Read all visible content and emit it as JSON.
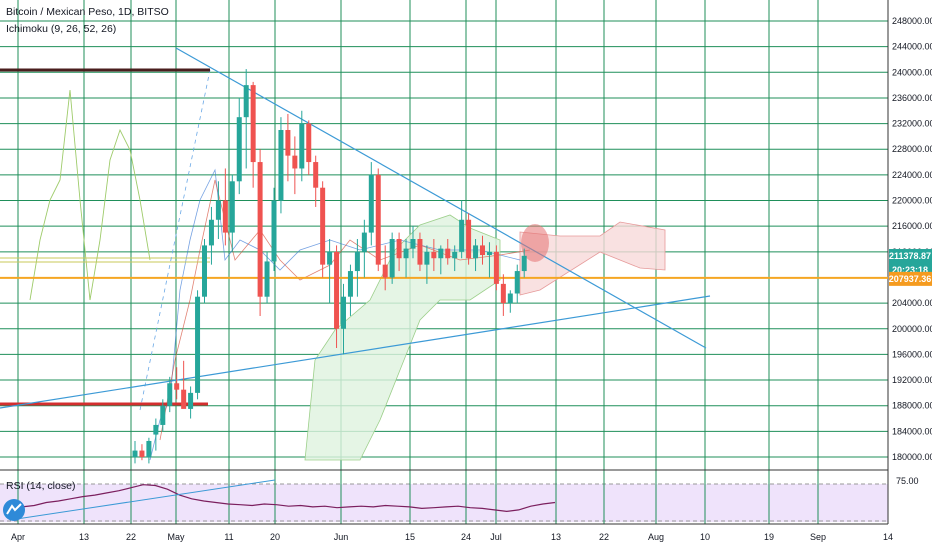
{
  "header": {
    "symbol_line": "Bitcoin / Mexican Peso, 1D, BITSO",
    "indicator_line": "Ichimoku (9, 26, 52, 26)",
    "rsi_label": "RSI (14, close)"
  },
  "colors": {
    "grid": "#1f8f5a",
    "up": "#26a69a",
    "down": "#ef5350",
    "trendline": "#3c9ad6",
    "support_red": "#d32f2f",
    "resistance_dark": "#4a1e1e",
    "orange_line": "#f5a623",
    "rsi_line": "#7b1f5e",
    "rsi_band": "#efe3fb",
    "current_price_badge": "#26a69a",
    "orange_badge": "#f59b1f"
  },
  "chart_data": {
    "type": "candlestick",
    "title": "Bitcoin / Mexican Peso, 1D, BITSO",
    "y_range": [
      176000,
      250000
    ],
    "y_ticks": [
      248000,
      244000,
      240000,
      236000,
      232000,
      228000,
      224000,
      220000,
      216000,
      212000,
      208000,
      204000,
      200000,
      196000,
      192000,
      188000,
      184000,
      180000
    ],
    "y_tick_labels": [
      "248000.00",
      "244000.00",
      "240000.00",
      "236000.00",
      "232000.00",
      "228000.00",
      "224000.00",
      "220000.00",
      "216000.00",
      "212000.00",
      "208000.00",
      "204000.00",
      "200000.00",
      "196000.00",
      "192000.00",
      "188000.00",
      "184000.00",
      "180000.00"
    ],
    "x_tick_labels": [
      "Apr",
      "13",
      "22",
      "May",
      "11",
      "20",
      "Jun",
      "15",
      "24",
      "Jul",
      "13",
      "22",
      "Aug",
      "10",
      "19",
      "Sep",
      "14"
    ],
    "price_labels": {
      "current": "211378.87",
      "countdown": "20:23:18",
      "orange_level": "207937.36"
    },
    "horizontal_levels": [
      {
        "name": "resistance",
        "value": 240000
      },
      {
        "name": "support",
        "value": 188000
      },
      {
        "name": "orange",
        "value": 207937.36
      }
    ],
    "rsi": {
      "label": "RSI (14, close)",
      "upper_tick": "75.00",
      "values": [
        42,
        44,
        46,
        50,
        52,
        55,
        58,
        60,
        63,
        66,
        70,
        74,
        73,
        68,
        60,
        55,
        52,
        50,
        48,
        47,
        46,
        48,
        47,
        45,
        46,
        44,
        45,
        43,
        44,
        45,
        44,
        46,
        45,
        44,
        42,
        43,
        44,
        45,
        43,
        42,
        40,
        38,
        40,
        45,
        48,
        50
      ]
    },
    "candles": [
      {
        "o": 180000,
        "h": 182500,
        "l": 179000,
        "c": 181000
      },
      {
        "o": 181000,
        "h": 182000,
        "l": 179500,
        "c": 180000
      },
      {
        "o": 180000,
        "h": 183000,
        "l": 179000,
        "c": 182500
      },
      {
        "o": 183500,
        "h": 186000,
        "l": 181000,
        "c": 185000
      },
      {
        "o": 185000,
        "h": 189000,
        "l": 184000,
        "c": 188000
      },
      {
        "o": 188000,
        "h": 192500,
        "l": 187000,
        "c": 191500
      },
      {
        "o": 191500,
        "h": 194000,
        "l": 189000,
        "c": 190500
      },
      {
        "o": 190500,
        "h": 195000,
        "l": 188000,
        "c": 187500
      },
      {
        "o": 187500,
        "h": 191000,
        "l": 186000,
        "c": 190000
      },
      {
        "o": 190000,
        "h": 206000,
        "l": 189000,
        "c": 205000
      },
      {
        "o": 205000,
        "h": 214000,
        "l": 204000,
        "c": 213000
      },
      {
        "o": 213000,
        "h": 219000,
        "l": 210000,
        "c": 217000
      },
      {
        "o": 217000,
        "h": 223000,
        "l": 214000,
        "c": 220000
      },
      {
        "o": 220000,
        "h": 225000,
        "l": 213000,
        "c": 215000
      },
      {
        "o": 215000,
        "h": 224000,
        "l": 212000,
        "c": 223000
      },
      {
        "o": 223000,
        "h": 236000,
        "l": 221000,
        "c": 233000
      },
      {
        "o": 233000,
        "h": 240500,
        "l": 225000,
        "c": 238000
      },
      {
        "o": 238000,
        "h": 238500,
        "l": 222000,
        "c": 226000
      },
      {
        "o": 226000,
        "h": 228000,
        "l": 202000,
        "c": 205000
      },
      {
        "o": 205000,
        "h": 212000,
        "l": 204000,
        "c": 210500
      },
      {
        "o": 210500,
        "h": 222000,
        "l": 209000,
        "c": 220000
      },
      {
        "o": 220000,
        "h": 233000,
        "l": 218000,
        "c": 231000
      },
      {
        "o": 231000,
        "h": 233500,
        "l": 223000,
        "c": 227000
      },
      {
        "o": 227000,
        "h": 230000,
        "l": 221000,
        "c": 225000
      },
      {
        "o": 225000,
        "h": 234000,
        "l": 223000,
        "c": 232000
      },
      {
        "o": 232000,
        "h": 232500,
        "l": 224000,
        "c": 226000
      },
      {
        "o": 226000,
        "h": 227000,
        "l": 219000,
        "c": 222000
      },
      {
        "o": 222000,
        "h": 223000,
        "l": 208000,
        "c": 210000
      },
      {
        "o": 210000,
        "h": 214000,
        "l": 204000,
        "c": 212000
      },
      {
        "o": 212000,
        "h": 213000,
        "l": 197000,
        "c": 200000
      },
      {
        "o": 200000,
        "h": 207000,
        "l": 196000,
        "c": 205000
      },
      {
        "o": 205000,
        "h": 210000,
        "l": 202000,
        "c": 209000
      },
      {
        "o": 209000,
        "h": 214000,
        "l": 205000,
        "c": 212000
      },
      {
        "o": 212000,
        "h": 217000,
        "l": 208000,
        "c": 215000
      },
      {
        "o": 215000,
        "h": 226000,
        "l": 213000,
        "c": 224000
      },
      {
        "o": 224000,
        "h": 225000,
        "l": 209000,
        "c": 210000
      },
      {
        "o": 210000,
        "h": 213000,
        "l": 206000,
        "c": 208000
      },
      {
        "o": 208000,
        "h": 215000,
        "l": 207000,
        "c": 214000
      },
      {
        "o": 214000,
        "h": 215000,
        "l": 209000,
        "c": 211000
      },
      {
        "o": 211000,
        "h": 214000,
        "l": 208000,
        "c": 212500
      },
      {
        "o": 212500,
        "h": 216000,
        "l": 211000,
        "c": 214000
      },
      {
        "o": 214000,
        "h": 215000,
        "l": 209000,
        "c": 210000
      },
      {
        "o": 210000,
        "h": 213000,
        "l": 207000,
        "c": 212000
      },
      {
        "o": 212000,
        "h": 214000,
        "l": 209000,
        "c": 211000
      },
      {
        "o": 211000,
        "h": 213000,
        "l": 208500,
        "c": 212500
      },
      {
        "o": 212500,
        "h": 214000,
        "l": 210000,
        "c": 211000
      },
      {
        "o": 211000,
        "h": 213000,
        "l": 209000,
        "c": 212000
      },
      {
        "o": 212000,
        "h": 220000,
        "l": 211000,
        "c": 217000
      },
      {
        "o": 217000,
        "h": 218000,
        "l": 210000,
        "c": 211000
      },
      {
        "o": 211000,
        "h": 214000,
        "l": 209000,
        "c": 213000
      },
      {
        "o": 213000,
        "h": 214500,
        "l": 210000,
        "c": 211500
      },
      {
        "o": 211500,
        "h": 213500,
        "l": 208000,
        "c": 212000
      },
      {
        "o": 212000,
        "h": 213000,
        "l": 206000,
        "c": 207000
      },
      {
        "o": 207000,
        "h": 208500,
        "l": 202000,
        "c": 204000
      },
      {
        "o": 204000,
        "h": 206000,
        "l": 202500,
        "c": 205500
      },
      {
        "o": 205500,
        "h": 210000,
        "l": 204000,
        "c": 209000
      },
      {
        "o": 209000,
        "h": 212500,
        "l": 208000,
        "c": 211378.87
      }
    ]
  }
}
